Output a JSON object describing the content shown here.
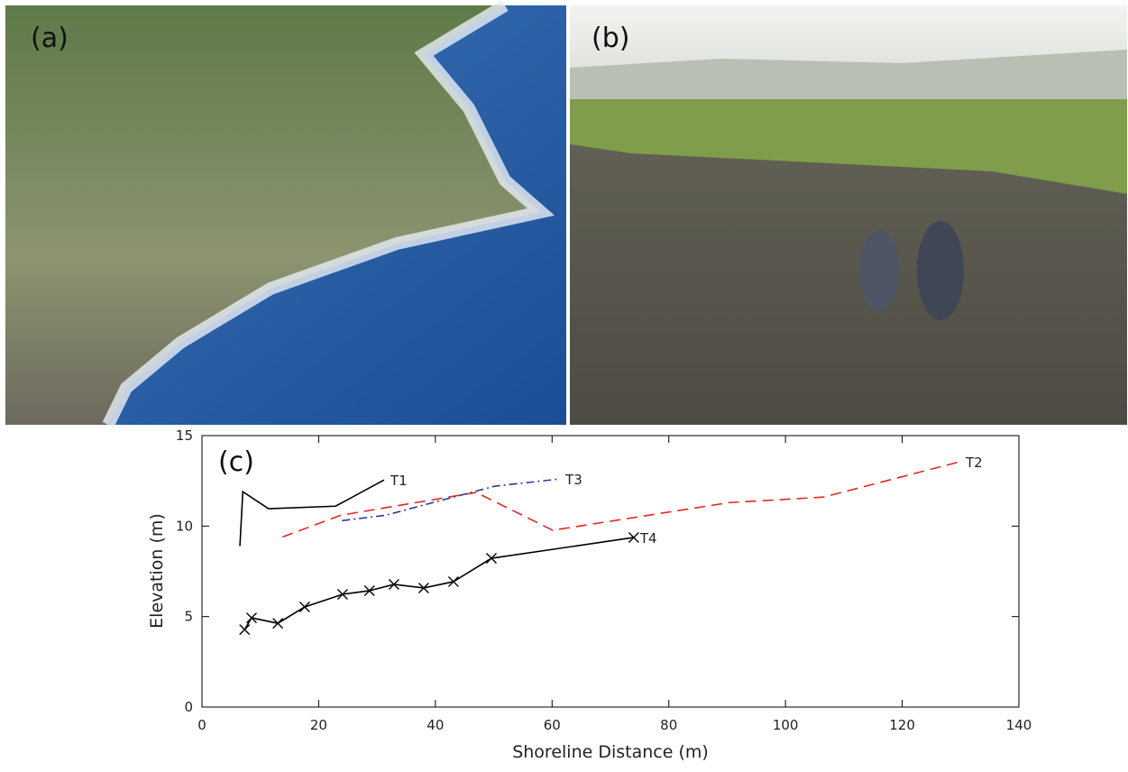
{
  "photos": [
    {
      "label": "(a)"
    },
    {
      "label": "(b)"
    }
  ],
  "chart_data": {
    "type": "line",
    "panel_label": "(c)",
    "x_label": "Shoreline Distance (m)",
    "y_label": "Elevation (m)",
    "xlim": [
      0,
      140
    ],
    "xticks": [
      0,
      20,
      40,
      60,
      80,
      100,
      120,
      140
    ],
    "ylim": [
      0,
      15
    ],
    "yticks": [
      0,
      5,
      10,
      15
    ],
    "grid": false,
    "series": [
      {
        "name": "T1",
        "color": "#000000",
        "dash": "solid",
        "marker": "none",
        "x": [
          6.5,
          7.0,
          11.4,
          22.9,
          31.2
        ],
        "values": [
          8.9,
          11.9,
          10.96,
          11.1,
          12.55
        ]
      },
      {
        "name": "T2",
        "color": "#e8251f",
        "dash": "dashed",
        "marker": "none",
        "x": [
          13.8,
          23.8,
          47,
          60.1,
          90.4,
          106.5,
          129.8
        ],
        "values": [
          9.4,
          10.6,
          11.86,
          9.77,
          11.3,
          11.6,
          13.55
        ]
      },
      {
        "name": "T3",
        "color": "#2f3a8f",
        "dash": "dashdot",
        "marker": "none",
        "x": [
          24,
          31.5,
          41.9,
          50.1,
          61.2
        ],
        "values": [
          10.3,
          10.6,
          11.5,
          12.2,
          12.6
        ]
      },
      {
        "name": "T4",
        "color": "#000000",
        "dash": "solid",
        "marker": "x",
        "x": [
          7.3,
          8.5,
          13.0,
          17.6,
          24.1,
          28.7,
          32.9,
          38.0,
          43.1,
          49.6,
          74.0
        ],
        "values": [
          4.28,
          4.93,
          4.63,
          5.53,
          6.23,
          6.43,
          6.78,
          6.58,
          6.93,
          8.22,
          9.37
        ]
      }
    ]
  }
}
